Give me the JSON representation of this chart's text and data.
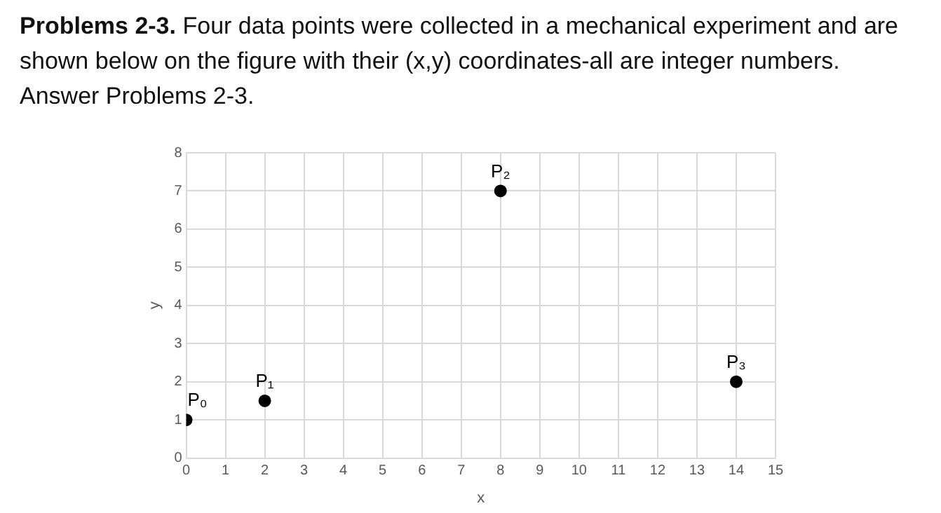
{
  "chart_data": {
    "type": "scatter",
    "title": "Problems 2-3.",
    "subtitle": "Four data points were collected in a mechanical experiment and are shown below on the figure with their (x,y) coordinates-all are integer numbers. Answer Problems 2-3.",
    "xlabel": "x",
    "ylabel": "y",
    "x": [
      0,
      2,
      8,
      14
    ],
    "values": [
      1,
      1.5,
      7,
      2
    ],
    "color": "#000000",
    "marker": "circle",
    "xlim": [
      0,
      15
    ],
    "xticks": [
      0,
      1,
      2,
      3,
      4,
      5,
      6,
      7,
      8,
      9,
      10,
      11,
      12,
      13,
      14,
      15
    ],
    "ylim": [
      0,
      8
    ],
    "yticks": [
      0,
      1,
      2,
      3,
      4,
      5,
      6,
      7,
      8
    ],
    "grid": true,
    "legend": false,
    "annotations": [
      {
        "text": "P₀",
        "x": 0,
        "y": 1
      },
      {
        "text": "P₁",
        "x": 2,
        "y": 1.5
      },
      {
        "text": "P₂",
        "x": 8,
        "y": 7
      },
      {
        "text": "P₃",
        "x": 14,
        "y": 2
      }
    ]
  }
}
